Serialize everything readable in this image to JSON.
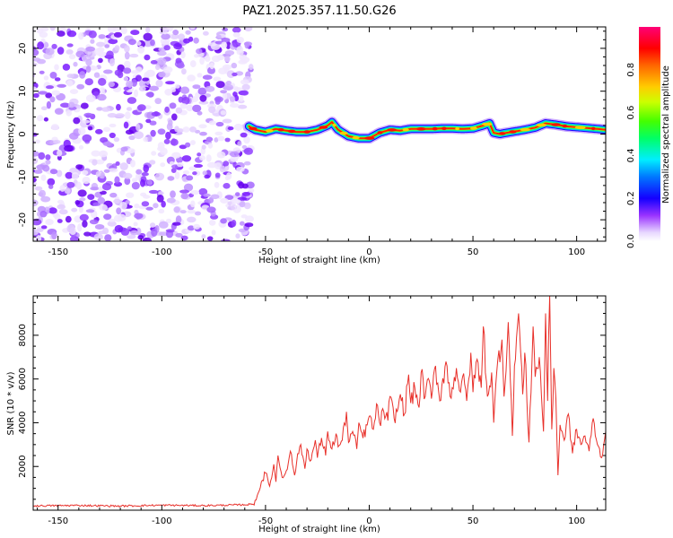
{
  "title": "PAZ1.2025.357.11.50.G26",
  "chart_data": [
    {
      "type": "heatmap",
      "name": "spectrogram",
      "xlabel": "Height of straight line (km)",
      "ylabel": "Frequency (Hz)",
      "xlim": [
        -162,
        114
      ],
      "ylim": [
        -25,
        25
      ],
      "xticks": [
        -150,
        -100,
        -50,
        0,
        50,
        100
      ],
      "yticks": [
        -20,
        -10,
        0,
        10,
        20
      ],
      "noise_region_x": [
        -162,
        -58
      ],
      "signal_ridge": {
        "x": [
          -58,
          -55,
          -50,
          -45,
          -40,
          -35,
          -30,
          -25,
          -20,
          -18,
          -15,
          -10,
          -5,
          0,
          5,
          10,
          15,
          20,
          25,
          30,
          35,
          40,
          45,
          50,
          55,
          58,
          60,
          63,
          65,
          70,
          75,
          80,
          85,
          90,
          95,
          100,
          105,
          110,
          114
        ],
        "freq": [
          1.8,
          1.0,
          0.5,
          1.2,
          0.8,
          0.5,
          0.5,
          1.0,
          2.0,
          2.8,
          1.0,
          -0.5,
          -1.0,
          -1.0,
          0.3,
          1.0,
          0.8,
          1.2,
          1.2,
          1.2,
          1.3,
          1.3,
          1.2,
          1.3,
          2.0,
          2.5,
          0.3,
          0.0,
          0.2,
          0.6,
          1.0,
          1.5,
          2.5,
          2.2,
          1.8,
          1.6,
          1.4,
          1.2,
          1.0
        ]
      },
      "colorbar": {
        "label": "Normalized spectral amplitude",
        "range": [
          0,
          1
        ],
        "ticks": [
          "0.0",
          "0.2",
          "0.4",
          "0.6",
          "0.8"
        ],
        "colors": [
          "#ffffff",
          "#cc99ff",
          "#7700ff",
          "#0000ff",
          "#00ffff",
          "#00ff00",
          "#ffff00",
          "#ff8800",
          "#ff0000",
          "#ff0066"
        ]
      }
    },
    {
      "type": "line",
      "name": "snr",
      "xlabel": "Height of straight line (km)",
      "ylabel": "SNR (10 * v/v)",
      "xlim": [
        -162,
        114
      ],
      "ylim": [
        0,
        9800
      ],
      "xticks": [
        -150,
        -100,
        -50,
        0,
        50,
        100
      ],
      "yticks": [
        2000,
        4000,
        6000,
        8000
      ],
      "color": "#e8302a",
      "series": [
        {
          "name": "SNR",
          "x": [
            -162,
            -140,
            -120,
            -100,
            -80,
            -60,
            -56,
            -55,
            -53,
            -52,
            -50,
            -48,
            -46,
            -45,
            -44,
            -42,
            -40,
            -38,
            -36,
            -35,
            -33,
            -31,
            -30,
            -28,
            -26,
            -25,
            -23,
            -21,
            -20,
            -18,
            -16,
            -15,
            -13,
            -11,
            -10,
            -8,
            -6,
            -5,
            -3,
            -1,
            0,
            2,
            4,
            5,
            7,
            9,
            10,
            12,
            14,
            15,
            17,
            19,
            20,
            22,
            24,
            25,
            27,
            29,
            30,
            32,
            34,
            35,
            37,
            39,
            40,
            42,
            44,
            45,
            47,
            49,
            50,
            52,
            54,
            55,
            57,
            59,
            60,
            62,
            64,
            65,
            67,
            69,
            70,
            72,
            74,
            75,
            77,
            79,
            80,
            82,
            84,
            85,
            86,
            87,
            88,
            89,
            90,
            91,
            92,
            94,
            96,
            98,
            100,
            102,
            104,
            106,
            108,
            110,
            112,
            114
          ],
          "y": [
            200,
            220,
            190,
            230,
            210,
            250,
            280,
            450,
            900,
            1300,
            1700,
            1100,
            2100,
            1300,
            2500,
            1500,
            1800,
            2700,
            1600,
            2200,
            3000,
            1900,
            2800,
            2300,
            3200,
            2400,
            3300,
            2500,
            3600,
            2800,
            3500,
            2900,
            3200,
            4500,
            3100,
            3600,
            2800,
            4000,
            3300,
            3900,
            4300,
            3700,
            4800,
            4000,
            4500,
            4100,
            5200,
            4200,
            4700,
            5300,
            4400,
            6200,
            4900,
            5600,
            4700,
            6300,
            5200,
            5900,
            5100,
            6600,
            5000,
            5700,
            6800,
            5200,
            5600,
            6500,
            5400,
            6100,
            5000,
            7200,
            5400,
            6900,
            5600,
            8400,
            5200,
            6300,
            4000,
            6900,
            7800,
            5200,
            8600,
            3400,
            6600,
            9000,
            5300,
            7200,
            3100,
            8400,
            6100,
            7000,
            3600,
            9000,
            5000,
            9800,
            3700,
            6500,
            5100,
            1600,
            3900,
            3200,
            4400,
            2600,
            3700,
            3000,
            3400,
            2700,
            4200,
            3000,
            2400,
            3600
          ]
        }
      ]
    }
  ]
}
